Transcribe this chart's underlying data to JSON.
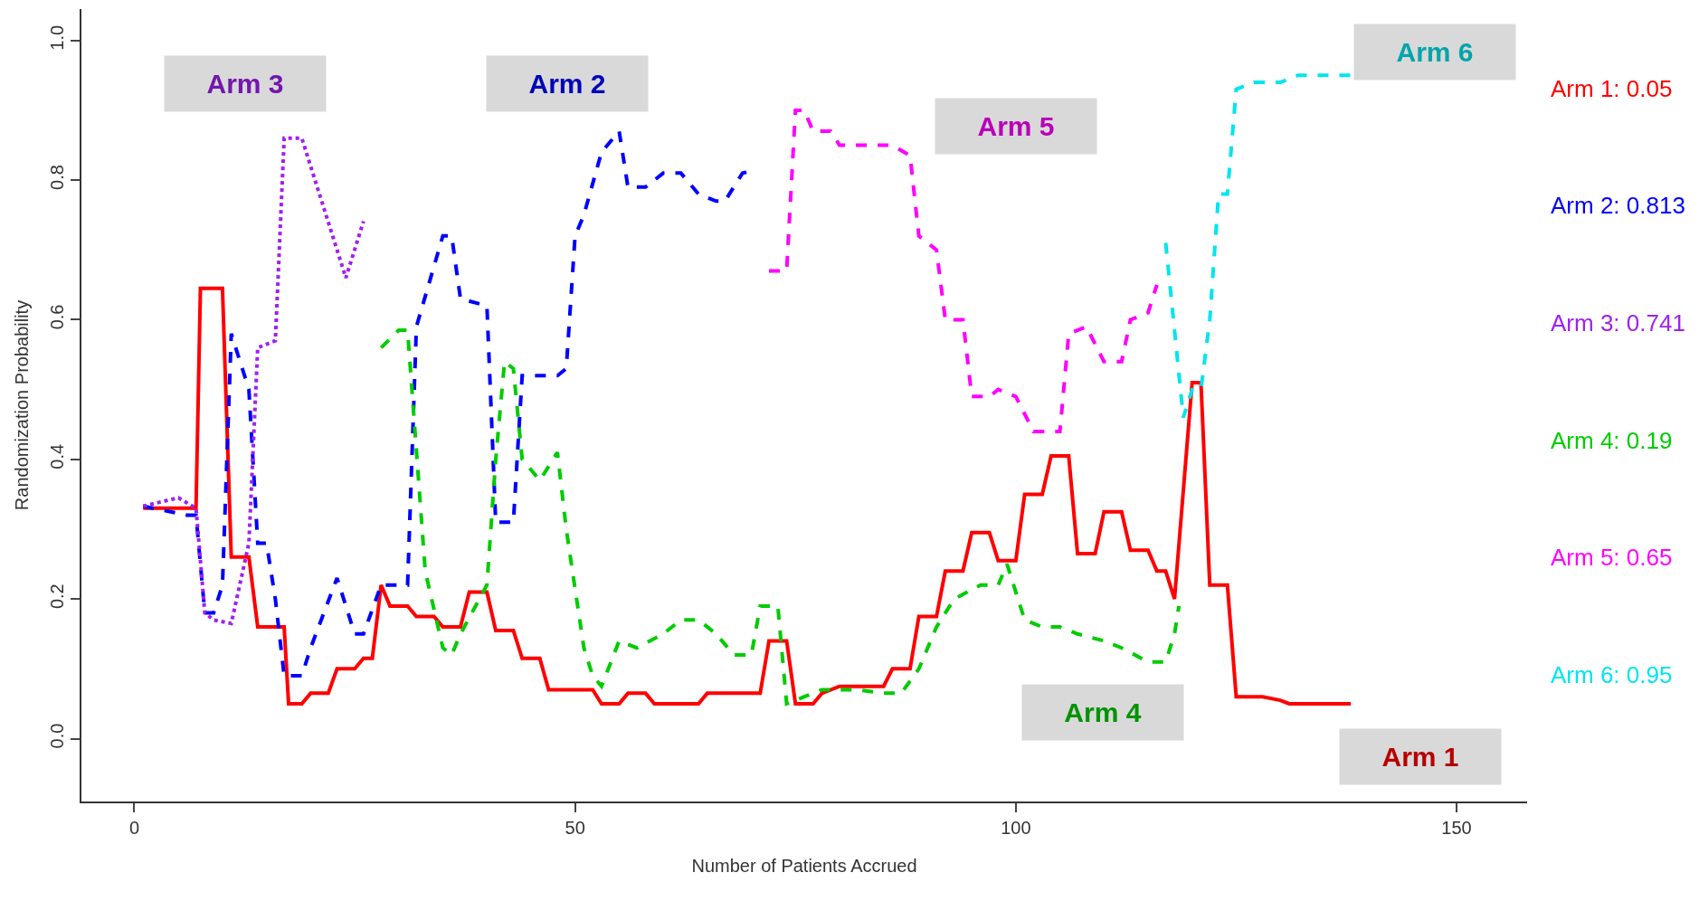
{
  "chart_data": {
    "type": "line",
    "xlabel": "Number of Patients Accrued",
    "ylabel": "Randomization Probability",
    "xlim": [
      -6,
      158
    ],
    "xticks": [
      0,
      50,
      100,
      150
    ],
    "ylim": [
      -0.09,
      1.045
    ],
    "yticks": [
      {
        "value": 0,
        "label": "0.0"
      },
      {
        "value": 0.2,
        "label": "0.2"
      },
      {
        "value": 0.4,
        "label": "0.4"
      },
      {
        "value": 0.6,
        "label": "0.6"
      },
      {
        "value": 0.8,
        "label": "0.8"
      },
      {
        "value": 1,
        "label": "1.0"
      }
    ],
    "grid": false,
    "legend": false,
    "marker": "none",
    "annotations": [
      "Arm 1: 0.05",
      "Arm 2: 0.813",
      "Arm 3: 0.741",
      "Arm 4: 0.19",
      "Arm 5: 0.65",
      "Arm 6: 0.95"
    ],
    "series": [
      {
        "name": "Arm 1",
        "color": "#ff0000",
        "line_style": "solid",
        "x": [
          1,
          7,
          7.5,
          10,
          11,
          13,
          14,
          17,
          17.5,
          19,
          20,
          22,
          23,
          25,
          26,
          27,
          28,
          29,
          31,
          32,
          34,
          35,
          37,
          38,
          40,
          41,
          43,
          44,
          46,
          47,
          52,
          53,
          55,
          56,
          58,
          59,
          64,
          65,
          71,
          72,
          74,
          75,
          77,
          78,
          80,
          85,
          86,
          88,
          89,
          91,
          92,
          94,
          95,
          97,
          98,
          100,
          101,
          103,
          104,
          106,
          107,
          109,
          110,
          112,
          113,
          115,
          116,
          117,
          118,
          120,
          121,
          122,
          124,
          125,
          128,
          130,
          131,
          138
        ],
        "values": [
          0.33,
          0.33,
          0.645,
          0.645,
          0.26,
          0.26,
          0.16,
          0.16,
          0.05,
          0.05,
          0.065,
          0.065,
          0.1,
          0.1,
          0.115,
          0.115,
          0.22,
          0.19,
          0.19,
          0.175,
          0.175,
          0.16,
          0.16,
          0.21,
          0.21,
          0.155,
          0.155,
          0.115,
          0.115,
          0.07,
          0.07,
          0.05,
          0.05,
          0.065,
          0.065,
          0.05,
          0.05,
          0.065,
          0.065,
          0.14,
          0.14,
          0.05,
          0.05,
          0.065,
          0.075,
          0.075,
          0.1,
          0.1,
          0.175,
          0.175,
          0.24,
          0.24,
          0.295,
          0.295,
          0.255,
          0.255,
          0.35,
          0.35,
          0.405,
          0.405,
          0.265,
          0.265,
          0.325,
          0.325,
          0.27,
          0.27,
          0.24,
          0.24,
          0.2,
          0.51,
          0.51,
          0.22,
          0.22,
          0.06,
          0.06,
          0.055,
          0.05,
          0.05
        ]
      },
      {
        "name": "Arm 2",
        "color": "#0000ff",
        "line_style": "dashed",
        "x": [
          1,
          6,
          7,
          8,
          9,
          10,
          11,
          13,
          14,
          15,
          16,
          17,
          19,
          20,
          23,
          25,
          26,
          28,
          31,
          32,
          35,
          36,
          37,
          40,
          41,
          43,
          44,
          48,
          49,
          50,
          51,
          53,
          55,
          56,
          58,
          60,
          62,
          64,
          66,
          67,
          69,
          70
        ],
        "values": [
          0.333,
          0.32,
          0.32,
          0.18,
          0.18,
          0.22,
          0.58,
          0.5,
          0.28,
          0.28,
          0.2,
          0.09,
          0.09,
          0.13,
          0.23,
          0.15,
          0.15,
          0.22,
          0.22,
          0.59,
          0.72,
          0.72,
          0.63,
          0.62,
          0.31,
          0.31,
          0.52,
          0.52,
          0.53,
          0.72,
          0.75,
          0.84,
          0.87,
          0.79,
          0.79,
          0.81,
          0.81,
          0.78,
          0.77,
          0.77,
          0.81,
          0.813
        ]
      },
      {
        "name": "Arm 3",
        "color": "#a020f0",
        "line_style": "dotted",
        "x": [
          1,
          5,
          7,
          8,
          9,
          11,
          13,
          14,
          16,
          17,
          19,
          21,
          24,
          26
        ],
        "values": [
          0.333,
          0.345,
          0.33,
          0.18,
          0.17,
          0.165,
          0.28,
          0.56,
          0.57,
          0.86,
          0.86,
          0.78,
          0.66,
          0.741
        ]
      },
      {
        "name": "Arm 4",
        "color": "#00cc00",
        "line_style": "dashed",
        "x": [
          28,
          30,
          31,
          33,
          35,
          36,
          37,
          40,
          41,
          42,
          43,
          44,
          46,
          48,
          49,
          51,
          52,
          53,
          55,
          57,
          60,
          62,
          64,
          66,
          68,
          70,
          71,
          73,
          74,
          76,
          78,
          82,
          85,
          87,
          89,
          91,
          93,
          96,
          98,
          99,
          101,
          103,
          105,
          107,
          110,
          112,
          115,
          117,
          118,
          118.5
        ],
        "values": [
          0.56,
          0.585,
          0.585,
          0.24,
          0.13,
          0.12,
          0.15,
          0.22,
          0.4,
          0.54,
          0.53,
          0.4,
          0.37,
          0.41,
          0.3,
          0.13,
          0.09,
          0.075,
          0.14,
          0.13,
          0.15,
          0.17,
          0.17,
          0.15,
          0.12,
          0.12,
          0.19,
          0.19,
          0.05,
          0.06,
          0.07,
          0.07,
          0.065,
          0.065,
          0.1,
          0.16,
          0.2,
          0.22,
          0.22,
          0.25,
          0.17,
          0.16,
          0.16,
          0.15,
          0.14,
          0.13,
          0.11,
          0.11,
          0.15,
          0.19
        ]
      },
      {
        "name": "Arm 5",
        "color": "#ff00ff",
        "line_style": "dashed",
        "x": [
          72,
          74,
          75,
          76,
          77,
          79,
          80,
          86,
          88,
          89,
          91,
          92,
          94,
          95,
          97,
          98,
          100,
          102,
          105,
          106,
          108,
          110,
          112,
          113,
          115,
          116
        ],
        "values": [
          0.67,
          0.67,
          0.9,
          0.9,
          0.87,
          0.87,
          0.85,
          0.85,
          0.835,
          0.72,
          0.7,
          0.6,
          0.6,
          0.49,
          0.49,
          0.5,
          0.49,
          0.44,
          0.44,
          0.58,
          0.59,
          0.54,
          0.54,
          0.6,
          0.61,
          0.65
        ]
      },
      {
        "name": "Arm 6",
        "color": "#00e5ee",
        "line_style": "dashed",
        "x": [
          117,
          119,
          120,
          121,
          122,
          123,
          124,
          125,
          127,
          130,
          132,
          138
        ],
        "values": [
          0.71,
          0.46,
          0.5,
          0.5,
          0.6,
          0.78,
          0.78,
          0.93,
          0.94,
          0.94,
          0.95,
          0.95
        ]
      }
    ]
  }
}
